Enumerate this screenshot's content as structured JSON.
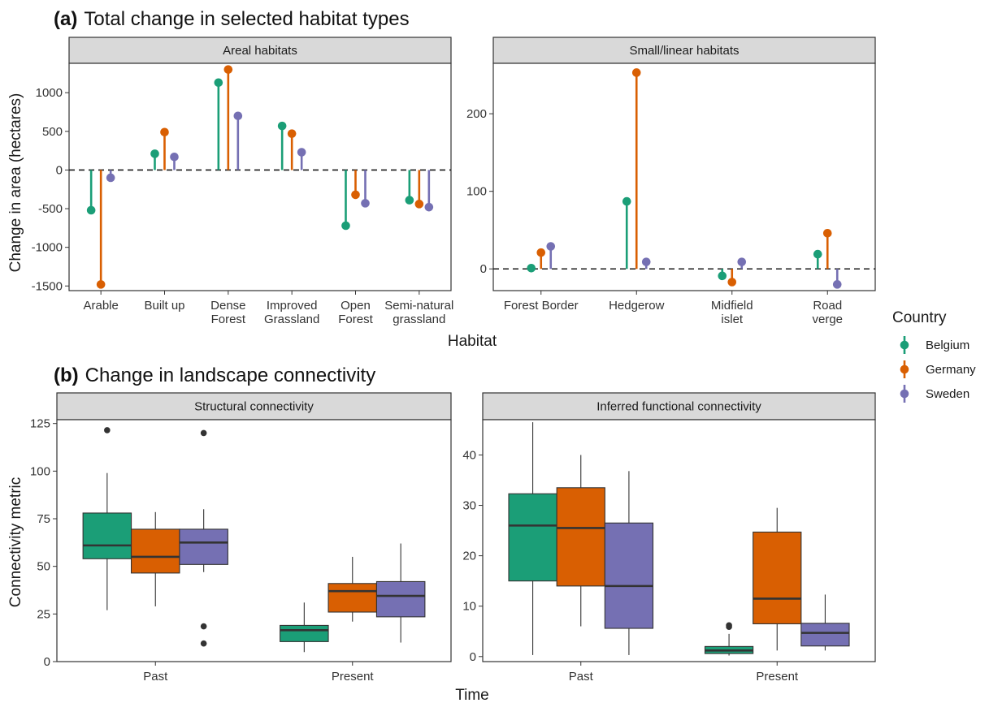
{
  "colors": {
    "Belgium": "#1b9e77",
    "Germany": "#d95f02",
    "Sweden": "#7570b3"
  },
  "section_a": {
    "tag": "(a)",
    "title": "Total change in selected habitat types"
  },
  "section_b": {
    "tag": "(b)",
    "title": "Change in landscape connectivity"
  },
  "legend": {
    "title": "Country",
    "entries": [
      "Belgium",
      "Germany",
      "Sweden"
    ]
  },
  "chart_data": [
    {
      "type": "lollipop",
      "facet": "Areal habitats",
      "xlabel": "Habitat",
      "ylabel": "Change in area (hectares)",
      "ylim": [
        -1560,
        1380
      ],
      "yticks": [
        -1500,
        -1000,
        -500,
        0,
        500,
        1000
      ],
      "categories": [
        "Arable",
        "Built up",
        "Dense\nForest",
        "Improved\nGrassland",
        "Open\nForest",
        "Semi-natural\ngrassland"
      ],
      "series": [
        {
          "name": "Belgium",
          "values": [
            -520,
            210,
            1130,
            570,
            -720,
            -390
          ]
        },
        {
          "name": "Germany",
          "values": [
            -1480,
            490,
            1300,
            470,
            -320,
            -440
          ]
        },
        {
          "name": "Sweden",
          "values": [
            -100,
            170,
            700,
            230,
            -430,
            -480
          ]
        }
      ]
    },
    {
      "type": "lollipop",
      "facet": "Small/linear habitats",
      "xlabel": "Habitat",
      "ylim": [
        -28,
        265
      ],
      "yticks": [
        0,
        100,
        200
      ],
      "categories": [
        "Forest Border",
        "Hedgerow",
        "Midfield\nislet",
        "Road\nverge"
      ],
      "series": [
        {
          "name": "Belgium",
          "values": [
            1,
            87,
            -9,
            19
          ]
        },
        {
          "name": "Germany",
          "values": [
            21,
            253,
            -17,
            46
          ]
        },
        {
          "name": "Sweden",
          "values": [
            29,
            9,
            9,
            -20
          ]
        }
      ]
    },
    {
      "type": "boxplot",
      "facet": "Structural connectivity",
      "xlabel": "Time",
      "ylabel": "Connectivity metric",
      "ylim": [
        0,
        127
      ],
      "yticks": [
        0,
        25,
        50,
        75,
        100,
        125
      ],
      "categories": [
        "Past",
        "Present"
      ],
      "series": [
        {
          "name": "Belgium",
          "boxes": [
            {
              "min": 27,
              "q1": 54,
              "median": 61,
              "q3": 78,
              "max": 99,
              "outliers": [
                121.5
              ]
            },
            {
              "min": 5,
              "q1": 10.5,
              "median": 16.5,
              "q3": 19,
              "max": 31,
              "outliers": []
            }
          ]
        },
        {
          "name": "Germany",
          "boxes": [
            {
              "min": 29,
              "q1": 46.5,
              "median": 55,
              "q3": 69.5,
              "max": 78.5,
              "outliers": []
            },
            {
              "min": 21,
              "q1": 26,
              "median": 37,
              "q3": 41,
              "max": 55,
              "outliers": []
            }
          ]
        },
        {
          "name": "Sweden",
          "boxes": [
            {
              "min": 47,
              "q1": 51,
              "median": 62.5,
              "q3": 69.5,
              "max": 80,
              "outliers": [
                120,
                18.5,
                9.5
              ]
            },
            {
              "min": 10,
              "q1": 23.5,
              "median": 34.5,
              "q3": 42,
              "max": 62,
              "outliers": []
            }
          ]
        }
      ]
    },
    {
      "type": "boxplot",
      "facet": "Inferred functional connectivity",
      "xlabel": "Time",
      "ylim": [
        -1,
        47
      ],
      "yticks": [
        0,
        10,
        20,
        30,
        40
      ],
      "categories": [
        "Past",
        "Present"
      ],
      "series": [
        {
          "name": "Belgium",
          "boxes": [
            {
              "min": 0.3,
              "q1": 15,
              "median": 26,
              "q3": 32.3,
              "max": 46.5,
              "outliers": []
            },
            {
              "min": 0.2,
              "q1": 0.6,
              "median": 1.2,
              "q3": 2,
              "max": 4.5,
              "outliers": [
                6.2,
                5.9
              ]
            }
          ]
        },
        {
          "name": "Germany",
          "boxes": [
            {
              "min": 6,
              "q1": 14,
              "median": 25.5,
              "q3": 33.5,
              "max": 40,
              "outliers": []
            },
            {
              "min": 1.2,
              "q1": 6.5,
              "median": 11.5,
              "q3": 24.7,
              "max": 29.5,
              "outliers": []
            }
          ]
        },
        {
          "name": "Sweden",
          "boxes": [
            {
              "min": 0.3,
              "q1": 5.6,
              "median": 14,
              "q3": 26.5,
              "max": 36.8,
              "outliers": []
            },
            {
              "min": 1.2,
              "q1": 2.1,
              "median": 4.7,
              "q3": 6.6,
              "max": 12.3,
              "outliers": []
            }
          ]
        }
      ]
    }
  ]
}
